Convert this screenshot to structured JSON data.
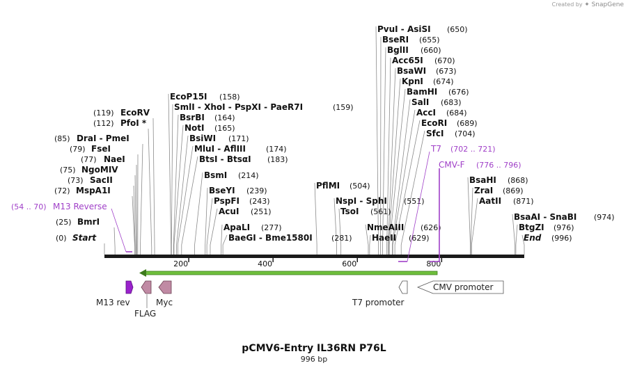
{
  "app": {
    "credit_prefix": "Created by",
    "credit_brand": "SnapGene"
  },
  "plasmid": {
    "name": "pCMV6-Entry IL36RN P76L",
    "length_label": "996 bp",
    "length": 996
  },
  "ruler": {
    "ticks": [
      "200",
      "400",
      "600",
      "800"
    ]
  },
  "enzymes_left": [
    {
      "names": [
        "EcoRV"
      ],
      "pos": "(119)"
    },
    {
      "names": [
        "PfoI *"
      ],
      "pos": "(112)"
    },
    {
      "names": [
        "DraI",
        "PmeI"
      ],
      "pos": "(85)"
    },
    {
      "names": [
        "FseI"
      ],
      "pos": "(79)"
    },
    {
      "names": [
        "NaeI"
      ],
      "pos": "(77)"
    },
    {
      "names": [
        "NgoMIV"
      ],
      "pos": "(75)"
    },
    {
      "names": [
        "SacII"
      ],
      "pos": "(73)"
    },
    {
      "names": [
        "MspA1I"
      ],
      "pos": "(72)"
    },
    {
      "names": [
        "BmrI"
      ],
      "pos": "(25)"
    },
    {
      "names": [
        "Start"
      ],
      "pos": "(0)"
    }
  ],
  "enzymes_mid": [
    {
      "names": [
        "EcoP15I"
      ],
      "pos": "(158)"
    },
    {
      "names": [
        "SmlI",
        "XhoI",
        "PspXI",
        "PaeR7I"
      ],
      "pos": "(159)"
    },
    {
      "names": [
        "BsrBI"
      ],
      "pos": "(164)"
    },
    {
      "names": [
        "NotI"
      ],
      "pos": "(165)"
    },
    {
      "names": [
        "BsiWI"
      ],
      "pos": "(171)"
    },
    {
      "names": [
        "MluI",
        "AflIII"
      ],
      "pos": "(174)"
    },
    {
      "names": [
        "BtsI",
        "BtsαI"
      ],
      "pos": "(183)"
    },
    {
      "names": [
        "BsmI"
      ],
      "pos": "(214)"
    },
    {
      "names": [
        "BseYI"
      ],
      "pos": "(239)"
    },
    {
      "names": [
        "PspFI"
      ],
      "pos": "(243)"
    },
    {
      "names": [
        "AcuI"
      ],
      "pos": "(251)"
    },
    {
      "names": [
        "ApaLI"
      ],
      "pos": "(277)"
    },
    {
      "names": [
        "BaeGI",
        "Bme1580I"
      ],
      "pos": "(281)"
    }
  ],
  "enzymes_right": [
    {
      "names": [
        "PvuI",
        "AsiSI"
      ],
      "pos": "(650)"
    },
    {
      "names": [
        "BseRI"
      ],
      "pos": "(655)"
    },
    {
      "names": [
        "BglII"
      ],
      "pos": "(660)"
    },
    {
      "names": [
        "Acc65I"
      ],
      "pos": "(670)"
    },
    {
      "names": [
        "BsaWI"
      ],
      "pos": "(673)"
    },
    {
      "names": [
        "KpnI"
      ],
      "pos": "(674)"
    },
    {
      "names": [
        "BamHI"
      ],
      "pos": "(676)"
    },
    {
      "names": [
        "SalI"
      ],
      "pos": "(683)"
    },
    {
      "names": [
        "AccI"
      ],
      "pos": "(684)"
    },
    {
      "names": [
        "EcoRI"
      ],
      "pos": "(689)"
    },
    {
      "names": [
        "SfcI"
      ],
      "pos": "(704)"
    },
    {
      "names": [
        "PflMI"
      ],
      "pos": "(504)"
    },
    {
      "names": [
        "NspI",
        "SphI"
      ],
      "pos": "(551)"
    },
    {
      "names": [
        "TsoI"
      ],
      "pos": "(561)"
    },
    {
      "names": [
        "NmeAIII"
      ],
      "pos": "(626)"
    },
    {
      "names": [
        "HaeII"
      ],
      "pos": "(629)"
    },
    {
      "names": [
        "BsaHI"
      ],
      "pos": "(868)"
    },
    {
      "names": [
        "ZraI"
      ],
      "pos": "(869)"
    },
    {
      "names": [
        "AatII"
      ],
      "pos": "(871)"
    },
    {
      "names": [
        "BsaAI",
        "SnaBI"
      ],
      "pos": "(974)"
    },
    {
      "names": [
        "BtgZI"
      ],
      "pos": "(976)"
    },
    {
      "names": [
        "End"
      ],
      "pos": "(996)"
    }
  ],
  "primers": [
    {
      "name": "M13 Reverse",
      "range": "(54 .. 70)"
    },
    {
      "name": "T7",
      "range": "(702 .. 721)"
    },
    {
      "name": "CMV-F",
      "range": "(776 .. 796)"
    }
  ],
  "features": {
    "m13rev": "M13 rev",
    "flag": "FLAG",
    "myc": "Myc",
    "t7": "T7 promoter",
    "cmv": "CMV promoter"
  },
  "colors": {
    "primer": "#a040c8",
    "m13": "#9a22cc",
    "tag": "#c08aa4",
    "orf": "#6fbf3c",
    "orf_edge": "#3d7a1c",
    "backbone": "#1a1a1a"
  }
}
